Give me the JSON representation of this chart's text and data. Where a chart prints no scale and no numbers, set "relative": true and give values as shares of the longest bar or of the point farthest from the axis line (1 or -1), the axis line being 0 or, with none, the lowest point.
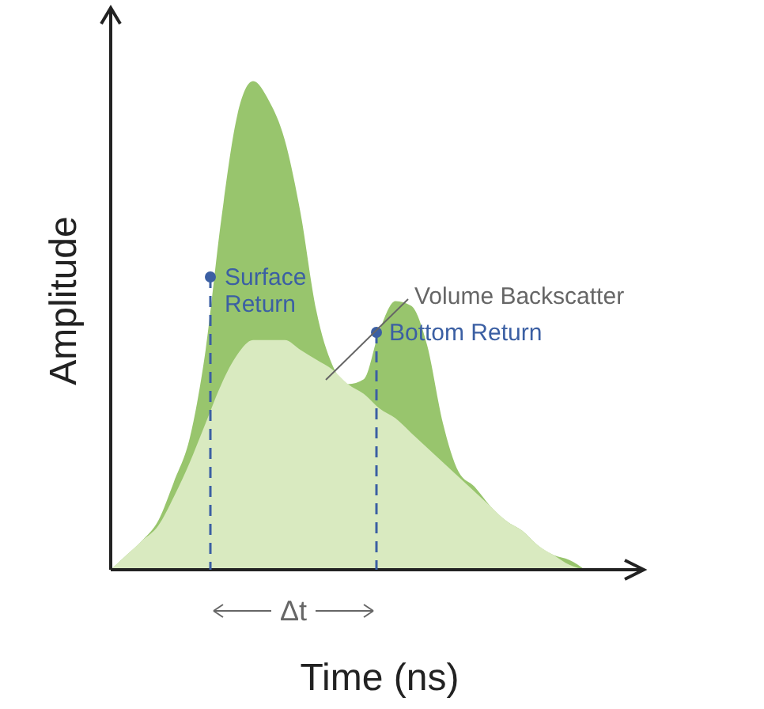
{
  "chart_data": {
    "type": "area",
    "relative": true,
    "xlabel": "Time (ns)",
    "ylabel": "Amplitude",
    "categories": [
      null,
      null,
      null,
      null,
      null,
      null,
      null,
      null,
      null,
      null,
      null,
      null,
      null,
      null,
      null,
      null,
      null,
      null,
      null,
      null,
      null,
      null,
      null,
      null,
      null,
      null,
      null,
      null,
      null,
      null,
      null
    ],
    "series": [
      {
        "color": "#98c56d",
        "values": [
          0,
          0.03,
          0.06,
          0.1,
          0.18,
          0.27,
          0.45,
          0.72,
          0.93,
          1.0,
          0.96,
          0.88,
          0.73,
          0.53,
          0.42,
          0.38,
          0.39,
          0.49,
          0.55,
          0.54,
          0.46,
          0.3,
          0.2,
          0.17,
          0.13,
          0.1,
          0.08,
          0.05,
          0.03,
          0.02,
          0
        ]
      },
      {
        "color": "#d9eac0",
        "values": [
          0,
          0.03,
          0.06,
          0.09,
          0.15,
          0.22,
          0.3,
          0.38,
          0.44,
          0.47,
          0.47,
          0.47,
          0.45,
          0.43,
          0.41,
          0.38,
          0.36,
          0.33,
          0.31,
          0.28,
          0.25,
          0.22,
          0.19,
          0.16,
          0.13,
          0.1,
          0.08,
          0.05,
          0.03,
          0.01,
          0
        ]
      }
    ],
    "annotations": [
      "Surface Return",
      "Bottom Return",
      "Volume Backscatter",
      "Δt"
    ]
  }
}
